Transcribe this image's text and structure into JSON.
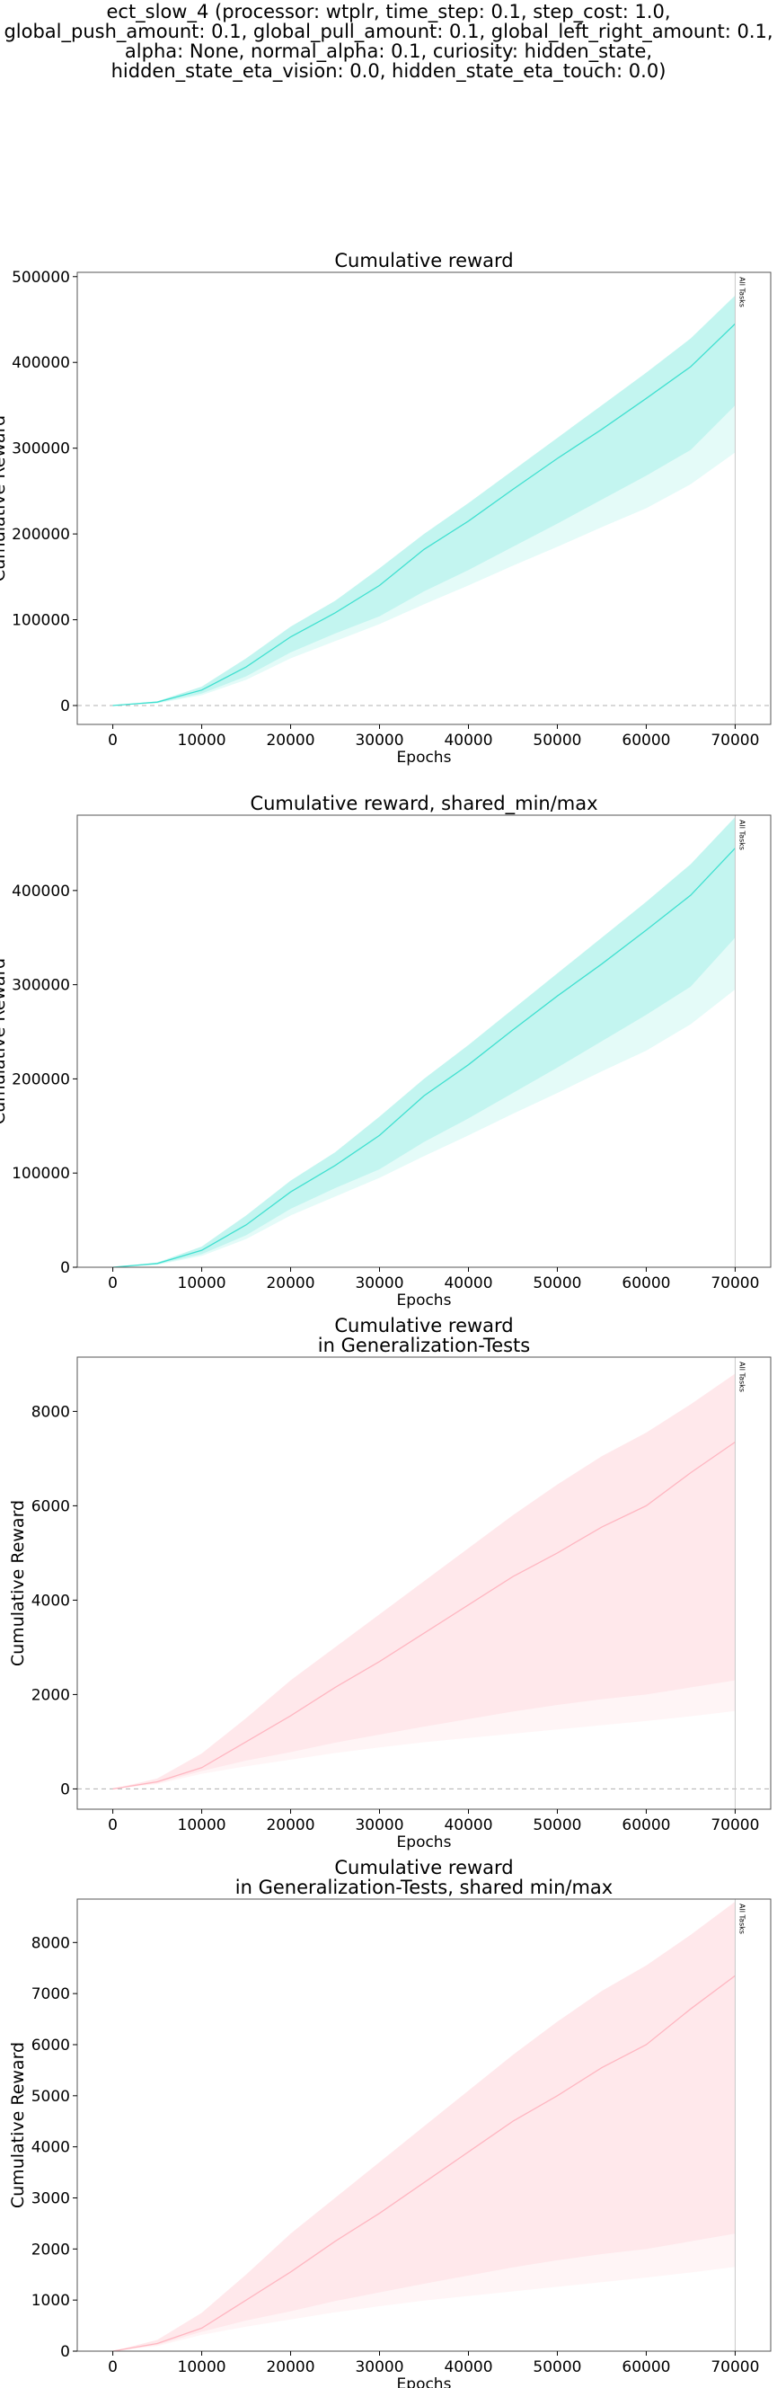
{
  "figure": {
    "title_lines": [
      "ect_slow_4 (processor: wtplr, time_step: 0.1, step_cost: 1.0,",
      "global_push_amount: 0.1, global_pull_amount: 0.1, global_left_right_amount: 0.1,",
      "alpha: None, normal_alpha: 0.1, curiosity: hidden_state,",
      "hidden_state_eta_vision: 0.0, hidden_state_eta_touch: 0.0)"
    ]
  },
  "chart_data": [
    {
      "type": "line",
      "title": "Cumulative reward",
      "xlabel": "Epochs",
      "ylabel": "Cumulative Reward",
      "xlim": [
        -4000,
        74000
      ],
      "ylim": [
        -22000,
        505000
      ],
      "xticks": [
        0,
        10000,
        20000,
        30000,
        40000,
        50000,
        60000,
        70000
      ],
      "yticks": [
        0,
        100000,
        200000,
        300000,
        400000,
        500000
      ],
      "zero_line": true,
      "color": "#40e0d0",
      "vline": {
        "x": 70000,
        "label": "All Tasks"
      },
      "series": [
        {
          "x": [
            0,
            5000,
            10000,
            15000,
            20000,
            25000,
            30000,
            35000,
            40000,
            45000,
            50000,
            55000,
            60000,
            65000,
            70000
          ],
          "mean": [
            0,
            4000,
            18000,
            45000,
            80000,
            108000,
            140000,
            182000,
            215000,
            252000,
            288000,
            322000,
            358000,
            395000,
            445000
          ],
          "upper": [
            0,
            5000,
            22000,
            55000,
            92000,
            122000,
            160000,
            200000,
            236000,
            274000,
            312000,
            350000,
            388000,
            428000,
            478000
          ],
          "lower": [
            0,
            3000,
            14000,
            34000,
            62000,
            84000,
            104000,
            133000,
            158000,
            185000,
            212000,
            240000,
            268000,
            298000,
            350000
          ],
          "min": [
            0,
            2500,
            12000,
            30000,
            55000,
            75000,
            95000,
            118000,
            140000,
            163000,
            185000,
            208000,
            230000,
            258000,
            295000
          ]
        }
      ]
    },
    {
      "type": "line",
      "title": "Cumulative reward, shared_min/max",
      "xlabel": "Epochs",
      "ylabel": "Cumulative Reward",
      "xlim": [
        -4000,
        74000
      ],
      "ylim": [
        0,
        480000
      ],
      "xticks": [
        0,
        10000,
        20000,
        30000,
        40000,
        50000,
        60000,
        70000
      ],
      "yticks": [
        0,
        100000,
        200000,
        300000,
        400000
      ],
      "zero_line": false,
      "color": "#40e0d0",
      "vline": {
        "x": 70000,
        "label": "All Tasks"
      },
      "series": [
        {
          "x": [
            0,
            5000,
            10000,
            15000,
            20000,
            25000,
            30000,
            35000,
            40000,
            45000,
            50000,
            55000,
            60000,
            65000,
            70000
          ],
          "mean": [
            0,
            4000,
            18000,
            45000,
            80000,
            108000,
            140000,
            182000,
            215000,
            252000,
            288000,
            322000,
            358000,
            395000,
            445000
          ],
          "upper": [
            0,
            5000,
            22000,
            55000,
            92000,
            122000,
            160000,
            200000,
            236000,
            274000,
            312000,
            350000,
            388000,
            428000,
            478000
          ],
          "lower": [
            0,
            3000,
            14000,
            34000,
            62000,
            84000,
            104000,
            133000,
            158000,
            185000,
            212000,
            240000,
            268000,
            298000,
            350000
          ],
          "min": [
            0,
            2500,
            12000,
            30000,
            55000,
            75000,
            95000,
            118000,
            140000,
            163000,
            185000,
            208000,
            230000,
            258000,
            295000
          ]
        }
      ]
    },
    {
      "type": "line",
      "title": "Cumulative reward\nin Generalization-Tests",
      "xlabel": "Epochs",
      "ylabel": "Cumulative Reward",
      "xlim": [
        -4000,
        74000
      ],
      "ylim": [
        -430,
        9150
      ],
      "xticks": [
        0,
        10000,
        20000,
        30000,
        40000,
        50000,
        60000,
        70000
      ],
      "yticks": [
        0,
        2000,
        4000,
        6000,
        8000
      ],
      "zero_line": true,
      "color": "#ffb6c1",
      "vline": {
        "x": 70000,
        "label": "All Tasks"
      },
      "series": [
        {
          "x": [
            0,
            5000,
            10000,
            15000,
            20000,
            25000,
            30000,
            35000,
            40000,
            45000,
            50000,
            55000,
            60000,
            65000,
            70000
          ],
          "mean": [
            0,
            150,
            450,
            1000,
            1550,
            2150,
            2700,
            3300,
            3900,
            4500,
            5000,
            5550,
            6000,
            6700,
            7350
          ],
          "upper": [
            0,
            220,
            750,
            1500,
            2300,
            3000,
            3700,
            4400,
            5100,
            5800,
            6450,
            7050,
            7550,
            8150,
            8800
          ],
          "lower": [
            0,
            120,
            380,
            600,
            780,
            980,
            1150,
            1320,
            1480,
            1640,
            1780,
            1900,
            2000,
            2150,
            2300
          ],
          "min": [
            0,
            100,
            320,
            480,
            620,
            760,
            880,
            990,
            1080,
            1170,
            1260,
            1350,
            1440,
            1540,
            1650
          ]
        }
      ]
    },
    {
      "type": "line",
      "title": "Cumulative reward\nin Generalization-Tests, shared min/max",
      "xlabel": "Epochs",
      "ylabel": "Cumulative Reward",
      "xlim": [
        -4000,
        74000
      ],
      "ylim": [
        0,
        8850
      ],
      "xticks": [
        0,
        10000,
        20000,
        30000,
        40000,
        50000,
        60000,
        70000
      ],
      "yticks": [
        0,
        1000,
        2000,
        3000,
        4000,
        5000,
        6000,
        7000,
        8000
      ],
      "zero_line": false,
      "color": "#ffb6c1",
      "vline": {
        "x": 70000,
        "label": "All Tasks"
      },
      "series": [
        {
          "x": [
            0,
            5000,
            10000,
            15000,
            20000,
            25000,
            30000,
            35000,
            40000,
            45000,
            50000,
            55000,
            60000,
            65000,
            70000
          ],
          "mean": [
            0,
            150,
            450,
            1000,
            1550,
            2150,
            2700,
            3300,
            3900,
            4500,
            5000,
            5550,
            6000,
            6700,
            7350
          ],
          "upper": [
            0,
            220,
            750,
            1500,
            2300,
            3000,
            3700,
            4400,
            5100,
            5800,
            6450,
            7050,
            7550,
            8150,
            8800
          ],
          "lower": [
            0,
            120,
            380,
            600,
            780,
            980,
            1150,
            1320,
            1480,
            1640,
            1780,
            1900,
            2000,
            2150,
            2300
          ],
          "min": [
            0,
            100,
            320,
            480,
            620,
            760,
            880,
            990,
            1080,
            1170,
            1260,
            1350,
            1440,
            1540,
            1650
          ]
        }
      ]
    }
  ]
}
